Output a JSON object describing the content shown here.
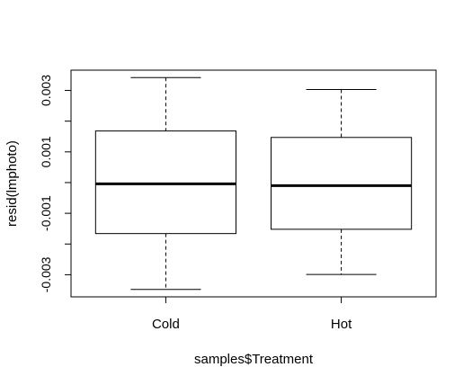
{
  "chart_data": {
    "type": "box",
    "title": "",
    "xlabel": "samples$Treatment",
    "ylabel": "resid(lmphoto)",
    "categories": [
      "Cold",
      "Hot"
    ],
    "yticks": [
      -0.003,
      -0.001,
      0.001,
      0.003
    ],
    "ytick_labels": [
      "-0.003",
      "-0.001",
      "0.001",
      "0.003"
    ],
    "ylim": [
      -0.00372,
      0.00366
    ],
    "boxes": [
      {
        "category": "Cold",
        "whisker_low": -0.00348,
        "q1": -0.00166,
        "median": -4e-05,
        "q3": 0.00168,
        "whisker_high": 0.00342
      },
      {
        "category": "Hot",
        "whisker_low": -0.00299,
        "q1": -0.00152,
        "median": -0.0001,
        "q3": 0.00147,
        "whisker_high": 0.00303
      }
    ]
  }
}
